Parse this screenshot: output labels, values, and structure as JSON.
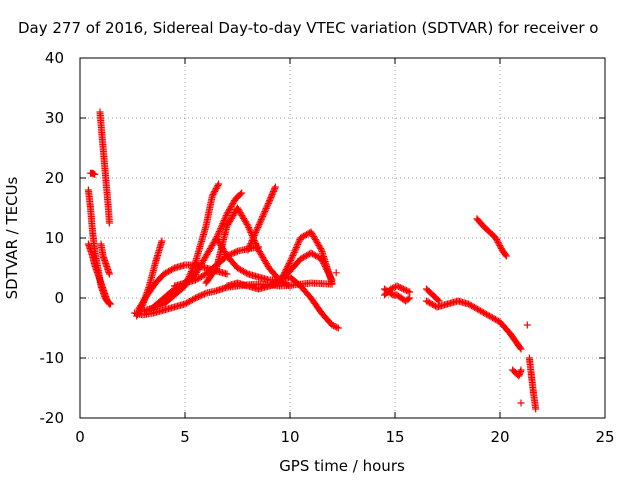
{
  "chart_data": {
    "type": "scatter",
    "title": "Day 277 of 2016, Sidereal Day-to-day VTEC variation (SDTVAR) for receiver o",
    "xlabel": "GPS time / hours",
    "ylabel": "SDTVAR / TECUs",
    "xlim": [
      0,
      25
    ],
    "ylim": [
      -20,
      40
    ],
    "xticks": [
      "0",
      "5",
      "10",
      "15",
      "20",
      "25"
    ],
    "yticks": [
      "-20",
      "-10",
      "0",
      "10",
      "20",
      "30",
      "40"
    ],
    "xtick_values": [
      0,
      5,
      10,
      15,
      20,
      25
    ],
    "ytick_values": [
      -20,
      -10,
      0,
      10,
      20,
      30,
      40
    ],
    "grid": true,
    "marker": "+",
    "color": "#ff0000",
    "series": [
      {
        "x": [
          0.4,
          0.5,
          0.6,
          0.7,
          0.8,
          0.9,
          1.0,
          1.1,
          1.2,
          1.3,
          1.45
        ],
        "y": [
          18,
          15,
          11,
          8,
          6,
          4,
          2,
          1,
          0,
          -0.5,
          -1
        ]
      },
      {
        "x": [
          0.5,
          0.6,
          0.7
        ],
        "y": [
          20.8,
          20.8,
          20.6
        ]
      },
      {
        "x": [
          0.4,
          0.5,
          0.6,
          0.7,
          0.8,
          0.9,
          1.0,
          1.1,
          1.2,
          1.3,
          1.4
        ],
        "y": [
          9,
          8,
          7,
          5.5,
          4.5,
          3.5,
          2.5,
          1.5,
          0.5,
          -0.5,
          -1
        ]
      },
      {
        "x": [
          0.95,
          1.0,
          1.05,
          1.1,
          1.15,
          1.2,
          1.25,
          1.3,
          1.35,
          1.4
        ],
        "y": [
          31,
          29,
          27,
          25,
          23,
          21,
          19,
          17,
          15,
          12.5
        ]
      },
      {
        "x": [
          1.0,
          1.1,
          1.2,
          1.3,
          1.4
        ],
        "y": [
          9,
          7,
          6,
          5,
          4
        ]
      },
      {
        "x": [
          2.6,
          3.0,
          3.5,
          4.0,
          4.5,
          5.0,
          5.5,
          6.0,
          6.5,
          7.0,
          7.5,
          8.0,
          8.5,
          9.0,
          9.5,
          10.0,
          10.5,
          11.0,
          11.5,
          12.0
        ],
        "y": [
          -2.5,
          -2.8,
          -2.5,
          -2.0,
          -1.5,
          -1.0,
          0.0,
          0.8,
          1.2,
          1.8,
          2.0,
          2.2,
          2.3,
          2.2,
          2.0,
          2.1,
          2.3,
          2.5,
          2.4,
          2.3
        ]
      },
      {
        "x": [
          2.7,
          3.0,
          3.3,
          3.6,
          3.9
        ],
        "y": [
          -3.0,
          -1.0,
          2.0,
          6.0,
          9.5
        ]
      },
      {
        "x": [
          2.8,
          3.2,
          3.6,
          4.0,
          4.5,
          5.0,
          5.5,
          6.0,
          6.5,
          7.0
        ],
        "y": [
          -1.8,
          0.5,
          2.5,
          4.0,
          5.0,
          5.5,
          5.5,
          5.0,
          4.5,
          4.0
        ]
      },
      {
        "x": [
          3.0,
          4.0,
          5.0,
          5.5,
          6.0,
          6.3,
          6.6
        ],
        "y": [
          -2.2,
          -1.0,
          2.0,
          6.0,
          12.0,
          17.0,
          19.0
        ]
      },
      {
        "x": [
          3.5,
          4.0,
          4.5,
          5.0,
          5.5,
          6.0,
          6.5,
          7.0,
          7.4,
          7.7
        ],
        "y": [
          -1.5,
          0.0,
          1.5,
          2.5,
          4.0,
          7.0,
          10.0,
          14.0,
          16.5,
          17.5
        ]
      },
      {
        "x": [
          4.5,
          5.0,
          5.5,
          6.0,
          6.5,
          7.0,
          7.5,
          8.0,
          8.5
        ],
        "y": [
          2.0,
          2.5,
          3.0,
          4.0,
          5.5,
          7.0,
          7.8,
          8.2,
          8.5
        ]
      },
      {
        "x": [
          6.0,
          6.5,
          7.0,
          7.5,
          8.0,
          8.5,
          9.0,
          9.5,
          10.0
        ],
        "y": [
          2.5,
          5.0,
          12.0,
          15.0,
          12.0,
          8.0,
          5.0,
          3.0,
          2.0
        ]
      },
      {
        "x": [
          6.5,
          7.0,
          7.5,
          8.0,
          8.5,
          9.0,
          9.5,
          10.0,
          10.5,
          11.0,
          11.5,
          12.0,
          12.3
        ],
        "y": [
          10.0,
          7.0,
          5.0,
          4.0,
          3.5,
          3.0,
          3.0,
          3.5,
          2.0,
          0.0,
          -2.5,
          -4.5,
          -5.0
        ]
      },
      {
        "x": [
          7.0,
          7.5,
          8.0,
          8.5,
          9.0,
          9.5,
          10.0,
          10.5,
          11.0,
          11.5,
          12.0
        ],
        "y": [
          2.0,
          2.5,
          2.0,
          1.5,
          2.0,
          2.5,
          6.0,
          10.0,
          11.0,
          8.0,
          2.5
        ]
      },
      {
        "x": [
          8.0,
          8.5,
          9.0,
          9.3
        ],
        "y": [
          8.0,
          12.0,
          16.0,
          18.5
        ]
      },
      {
        "x": [
          9.0,
          9.5,
          10.0,
          10.5,
          11.0,
          11.5,
          12.0
        ],
        "y": [
          2.0,
          3.0,
          4.5,
          6.5,
          7.5,
          6.5,
          3.0
        ]
      },
      {
        "x": [
          12.2
        ],
        "y": [
          4.2
        ]
      },
      {
        "x": [
          14.5,
          14.7,
          14.9,
          15.1,
          15.3,
          15.5,
          15.7
        ],
        "y": [
          1.5,
          1.0,
          0.5,
          0.5,
          0.0,
          -0.5,
          0.0
        ]
      },
      {
        "x": [
          14.5,
          14.8,
          15.1,
          15.4,
          15.7
        ],
        "y": [
          0.5,
          1.5,
          2.0,
          1.5,
          1.0
        ]
      },
      {
        "x": [
          16.5,
          17.0,
          17.5,
          18.0,
          18.5,
          19.0,
          19.5,
          20.0,
          20.5,
          20.8,
          21.0
        ],
        "y": [
          -0.5,
          -1.5,
          -1.0,
          -0.5,
          -1.0,
          -2.0,
          -3.0,
          -4.0,
          -6.0,
          -7.5,
          -8.5
        ]
      },
      {
        "x": [
          16.5,
          16.8,
          17.1
        ],
        "y": [
          1.5,
          0.5,
          -0.5
        ]
      },
      {
        "x": [
          18.9,
          19.2,
          19.5,
          19.8,
          20.1,
          20.3
        ],
        "y": [
          13.2,
          12.0,
          11.0,
          10.0,
          8.0,
          7.0
        ]
      },
      {
        "x": [
          20.6,
          20.9,
          21.0
        ],
        "y": [
          -12.0,
          -13.0,
          -12.0
        ]
      },
      {
        "x": [
          21.0
        ],
        "y": [
          -17.5
        ]
      },
      {
        "x": [
          21.3
        ],
        "y": [
          -4.5
        ]
      },
      {
        "x": [
          21.4,
          21.5,
          21.6,
          21.7
        ],
        "y": [
          -10.0,
          -13.0,
          -16.0,
          -18.5
        ]
      }
    ]
  }
}
